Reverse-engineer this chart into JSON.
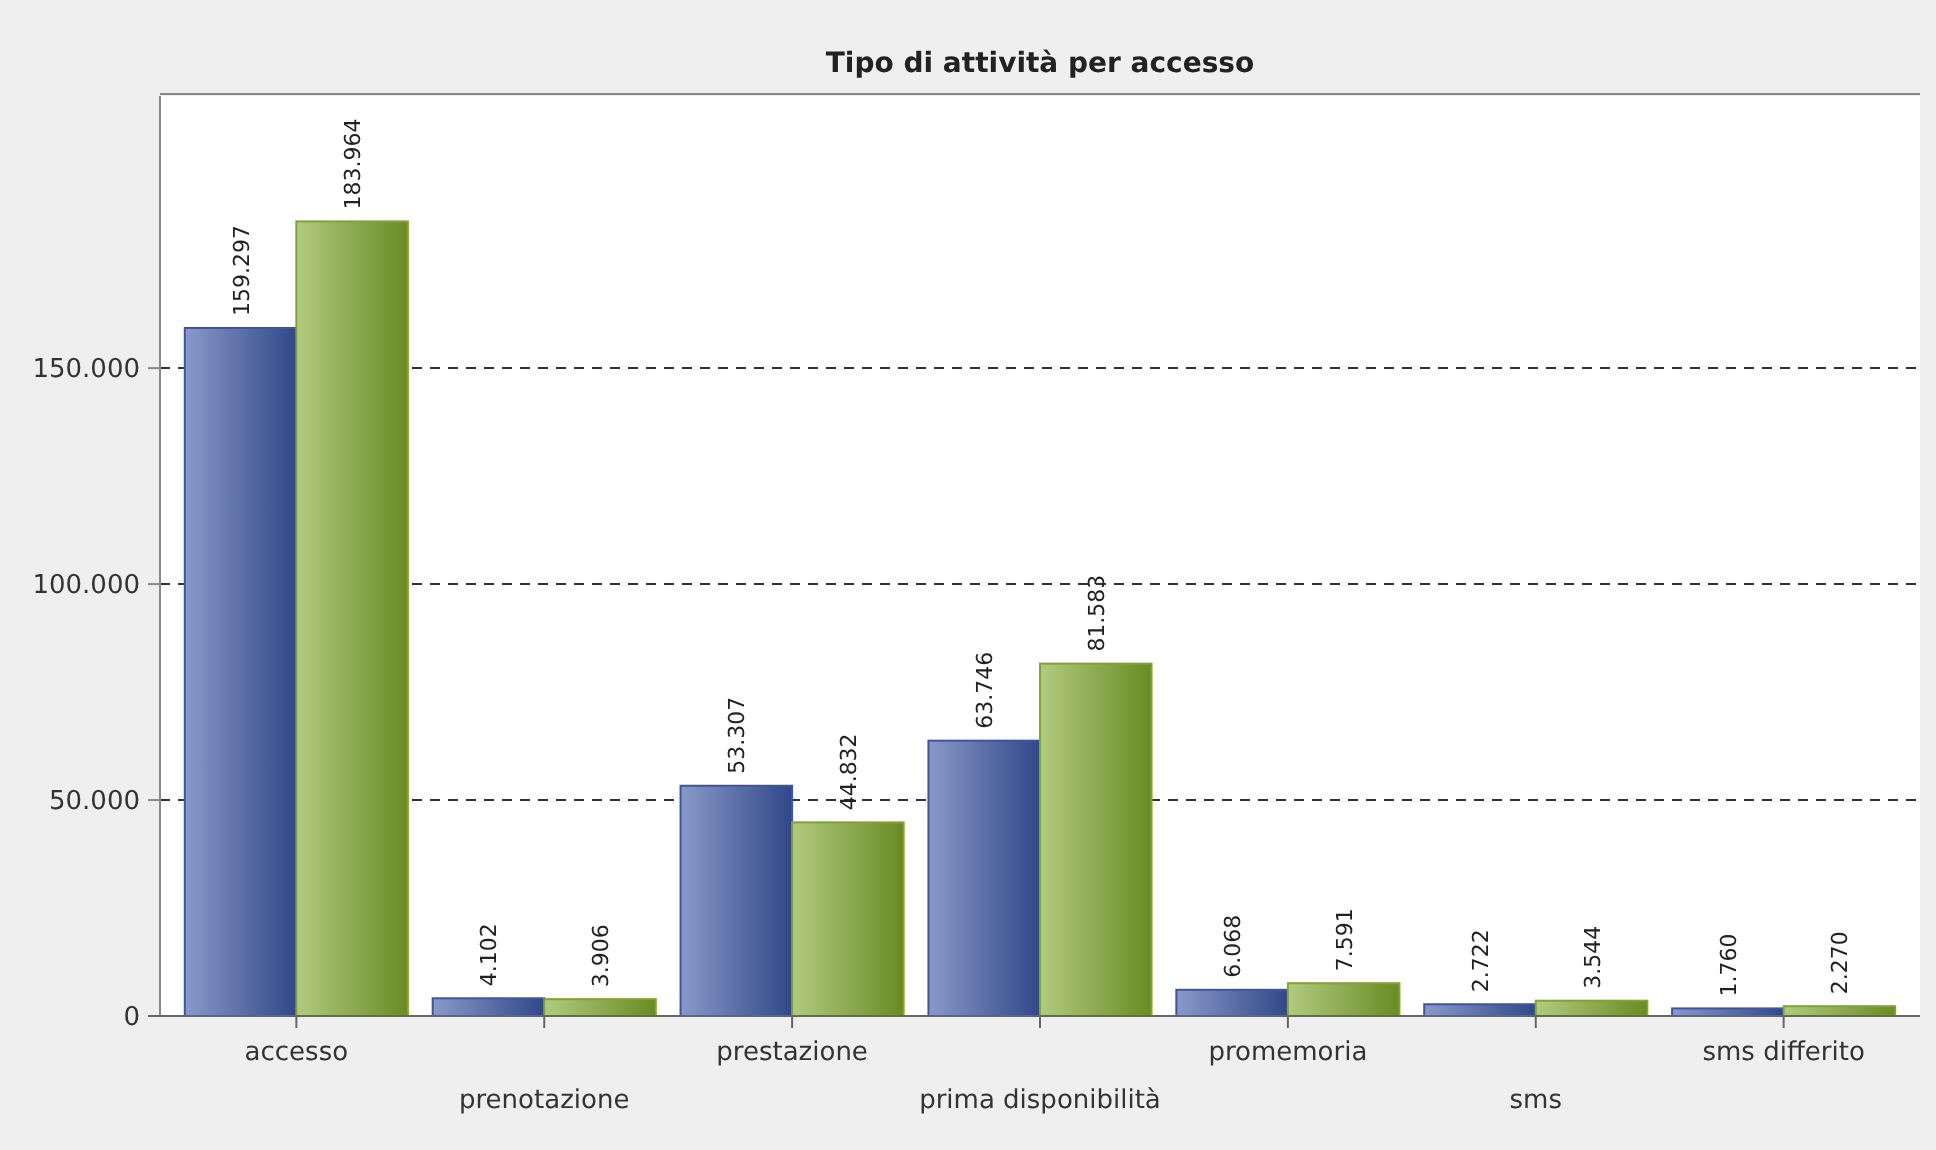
{
  "chart_data": {
    "type": "bar",
    "title": "Tipo di attività per accesso",
    "categories": [
      "accesso",
      "prenotazione",
      "prestazione",
      "prima disponibilità",
      "promemoria",
      "sms",
      "sms differito"
    ],
    "series": [
      {
        "color": "#3b55a3",
        "values": [
          159297,
          4102,
          53307,
          63746,
          6068,
          2722,
          1760
        ],
        "value_labels": [
          "159.297",
          "4.102",
          "53.307",
          "63.746",
          "6.068",
          "2.722",
          "1.760"
        ]
      },
      {
        "color": "#7ea62b",
        "values": [
          183964,
          3906,
          44832,
          81583,
          7591,
          3544,
          2270
        ],
        "value_labels": [
          "183.964",
          "3.906",
          "44.832",
          "81.583",
          "7.591",
          "3.544",
          "2.270"
        ]
      }
    ],
    "ylim": [
      0,
      213000
    ],
    "yticks": [
      0,
      {
        "value": 50000,
        "label": "50.000"
      },
      {
        "value": 100000,
        "label": "100.000"
      },
      {
        "value": 150000,
        "label": "150.000"
      }
    ],
    "grid": "y"
  }
}
